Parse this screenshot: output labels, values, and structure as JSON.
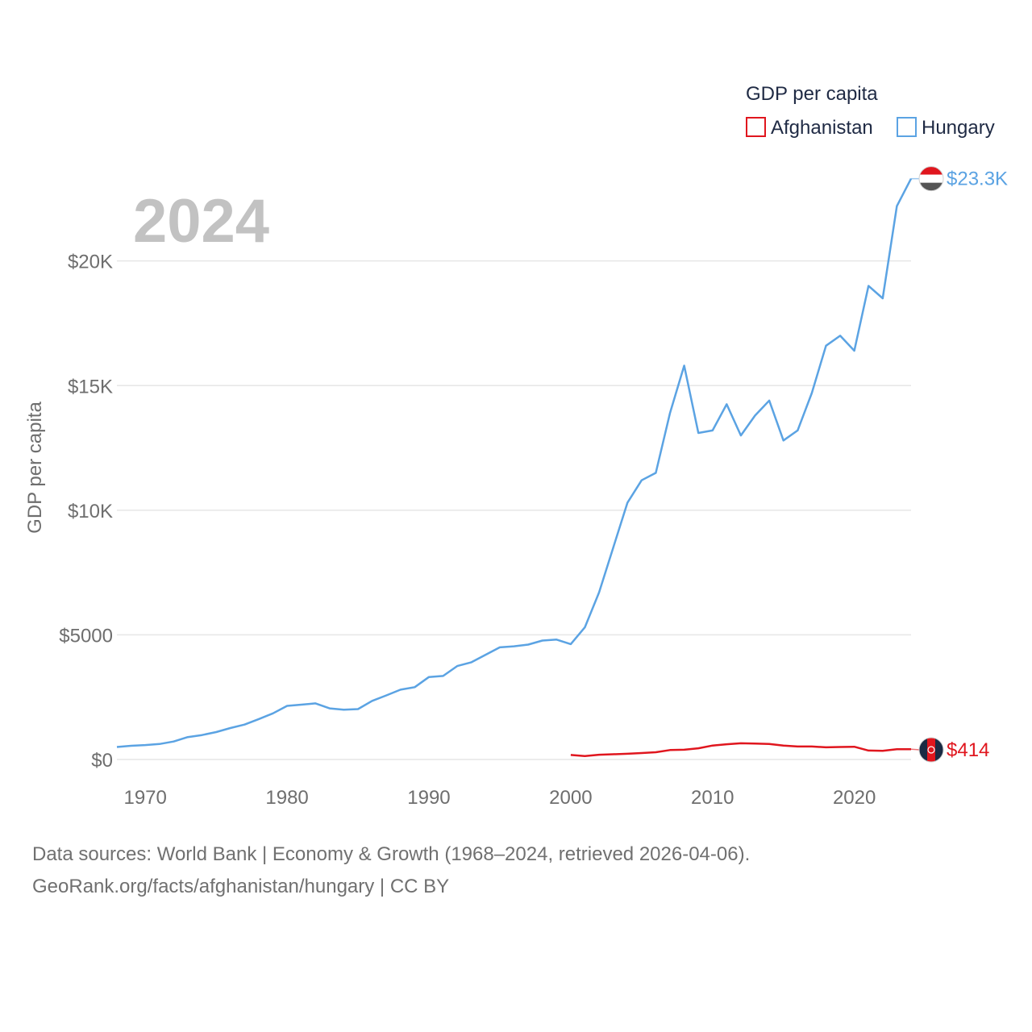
{
  "chart_data": {
    "type": "line",
    "title": "GDP per capita",
    "year_label": "2024",
    "ylabel": "GDP per capita",
    "xlabel": "",
    "xlim": [
      1968,
      2024
    ],
    "ylim": [
      0,
      24000
    ],
    "x_ticks": [
      1970,
      1980,
      1990,
      2000,
      2010,
      2020
    ],
    "x_tick_labels": [
      "1970",
      "1980",
      "1990",
      "2000",
      "2010",
      "2020"
    ],
    "y_ticks": [
      0,
      5000,
      10000,
      15000,
      20000
    ],
    "y_tick_labels": [
      "$0",
      "$5000",
      "$10K",
      "$15K",
      "$20K"
    ],
    "grid": true,
    "legend": {
      "title": "GDP per capita",
      "position": "top-right"
    },
    "series": [
      {
        "name": "Afghanistan",
        "color": "#e0161e",
        "end_label": "$414",
        "flag": "afghanistan-flag-icon",
        "x": [
          2000,
          2001,
          2002,
          2003,
          2004,
          2005,
          2006,
          2007,
          2008,
          2009,
          2010,
          2011,
          2012,
          2013,
          2014,
          2015,
          2016,
          2017,
          2018,
          2019,
          2020,
          2021,
          2022,
          2023,
          2024
        ],
        "values": [
          180,
          140,
          190,
          210,
          230,
          260,
          290,
          380,
          390,
          450,
          560,
          610,
          650,
          640,
          620,
          560,
          520,
          520,
          490,
          500,
          510,
          360,
          350,
          410,
          414
        ]
      },
      {
        "name": "Hungary",
        "color": "#5ba3e3",
        "end_label": "$23.3K",
        "flag": "hungary-flag-icon",
        "x": [
          1968,
          1969,
          1970,
          1971,
          1972,
          1973,
          1974,
          1975,
          1976,
          1977,
          1978,
          1979,
          1980,
          1981,
          1982,
          1983,
          1984,
          1985,
          1986,
          1987,
          1988,
          1989,
          1990,
          1991,
          1992,
          1993,
          1994,
          1995,
          1996,
          1997,
          1998,
          1999,
          2000,
          2001,
          2002,
          2003,
          2004,
          2005,
          2006,
          2007,
          2008,
          2009,
          2010,
          2011,
          2012,
          2013,
          2014,
          2015,
          2016,
          2017,
          2018,
          2019,
          2020,
          2021,
          2022,
          2023,
          2024
        ],
        "values": [
          500,
          550,
          580,
          620,
          720,
          900,
          980,
          1100,
          1260,
          1400,
          1620,
          1850,
          2150,
          2200,
          2250,
          2050,
          2000,
          2020,
          2350,
          2570,
          2800,
          2900,
          3310,
          3350,
          3750,
          3900,
          4200,
          4500,
          4540,
          4610,
          4770,
          4810,
          4630,
          5300,
          6700,
          8500,
          10300,
          11200,
          11500,
          13900,
          15800,
          13100,
          13200,
          14250,
          13000,
          13800,
          14400,
          12800,
          13200,
          14700,
          16600,
          17000,
          16400,
          19000,
          18500,
          22200,
          23300
        ]
      }
    ]
  },
  "footer": {
    "line1": "Data sources: World Bank | Economy & Growth (1968–2024, retrieved 2026-04-06).",
    "line2": "GeoRank.org/facts/afghanistan/hungary | CC BY"
  }
}
